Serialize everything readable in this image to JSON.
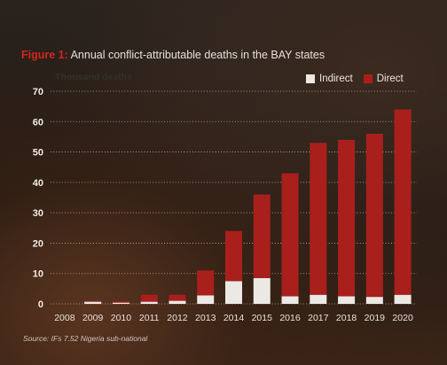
{
  "figure": {
    "prefix": "Figure 1:",
    "title": " Annual conflict-attributable deaths in the BAY states",
    "source": "Source: IFs 7.52 Nigeria sub-national"
  },
  "chart_data": {
    "type": "bar",
    "stacked": true,
    "unit_label": "Thousand deaths",
    "categories": [
      "2008",
      "2009",
      "2010",
      "2011",
      "2012",
      "2013",
      "2014",
      "2015",
      "2016",
      "2017",
      "2018",
      "2019",
      "2020"
    ],
    "series": [
      {
        "name": "Indirect",
        "color": "#ece8e4",
        "values": [
          0,
          0.7,
          0.4,
          0.7,
          1.0,
          2.8,
          7.5,
          8.5,
          2.5,
          3.0,
          2.5,
          2.3,
          3.0
        ]
      },
      {
        "name": "Direct",
        "color": "#a91f1c",
        "values": [
          0,
          0.2,
          0.4,
          2.3,
          2.0,
          8.2,
          16.5,
          27.5,
          40.5,
          50.0,
          51.5,
          53.7,
          61.0
        ]
      }
    ],
    "ylim": [
      0,
      70
    ],
    "yticks": [
      0,
      10,
      20,
      30,
      40,
      50,
      60,
      70
    ],
    "grid": true,
    "legend_position": "top-right"
  }
}
